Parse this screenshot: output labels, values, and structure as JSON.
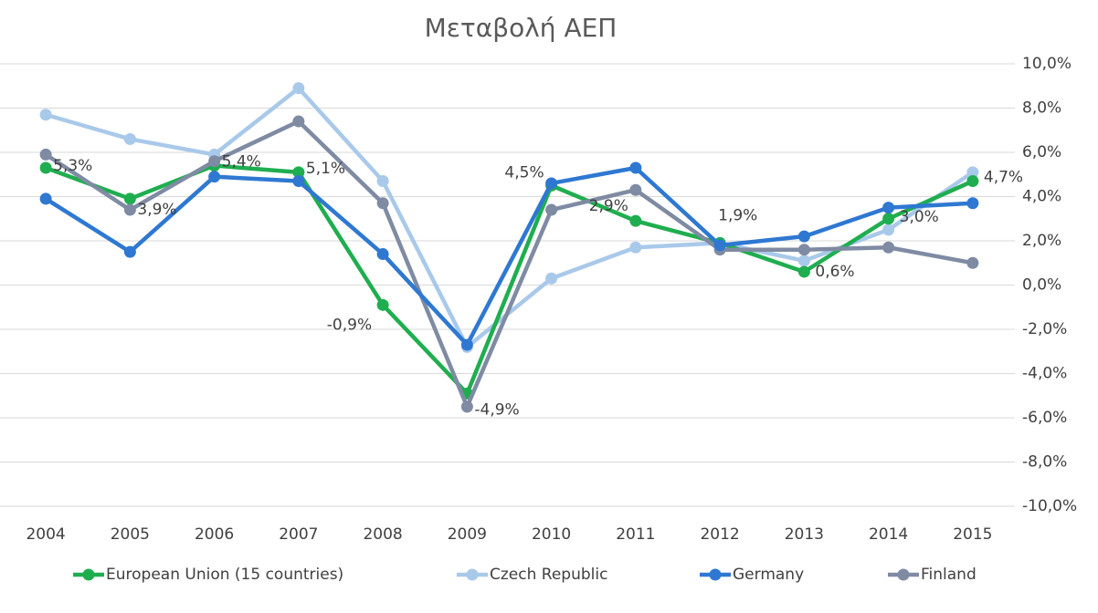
{
  "chart_data": {
    "type": "line",
    "title": "Μεταβολή ΑΕΠ",
    "categories": [
      "2004",
      "2005",
      "2006",
      "2007",
      "2008",
      "2009",
      "2010",
      "2011",
      "2012",
      "2013",
      "2014",
      "2015"
    ],
    "series": [
      {
        "name": "European Union (15 countries)",
        "color": "#1fae4f",
        "values": [
          5.3,
          3.9,
          5.4,
          5.1,
          -0.9,
          -4.9,
          4.5,
          2.9,
          1.9,
          0.6,
          3.0,
          4.7
        ],
        "value_labels": [
          "5,3%",
          "3,9%",
          "5,4%",
          "5,1%",
          "-0,9%",
          "-4,9%",
          "4,5%",
          "2,9%",
          "1,9%",
          "0,6%",
          "3,0%",
          "4,7%"
        ]
      },
      {
        "name": "Czech Republic",
        "color": "#a9c9ea",
        "values": [
          7.7,
          6.6,
          5.9,
          8.9,
          4.7,
          -2.8,
          0.3,
          1.7,
          1.9,
          1.1,
          2.5,
          5.1
        ]
      },
      {
        "name": "Germany",
        "color": "#2e78d2",
        "values": [
          3.9,
          1.5,
          4.9,
          4.7,
          1.4,
          -2.7,
          4.6,
          5.3,
          1.8,
          2.2,
          3.5,
          3.7
        ]
      },
      {
        "name": "Finland",
        "color": "#7f8ba3",
        "values": [
          5.9,
          3.4,
          5.6,
          7.4,
          3.7,
          -5.5,
          3.4,
          4.3,
          1.6,
          1.6,
          1.7,
          1.0
        ]
      }
    ],
    "ylim": [
      -10,
      10
    ],
    "yticks": [
      {
        "value": -10,
        "label": "-10,0%"
      },
      {
        "value": -8,
        "label": "-8,0%"
      },
      {
        "value": -6,
        "label": "-6,0%"
      },
      {
        "value": -4,
        "label": "-4,0%"
      },
      {
        "value": -2,
        "label": "-2,0%"
      },
      {
        "value": 0,
        "label": "0,0%"
      },
      {
        "value": 2,
        "label": "2,0%"
      },
      {
        "value": 4,
        "label": "4,0%"
      },
      {
        "value": 6,
        "label": "6,0%"
      },
      {
        "value": 8,
        "label": "8,0%"
      },
      {
        "value": 10,
        "label": "10,0%"
      }
    ],
    "grid": true,
    "legend": "bottom"
  }
}
